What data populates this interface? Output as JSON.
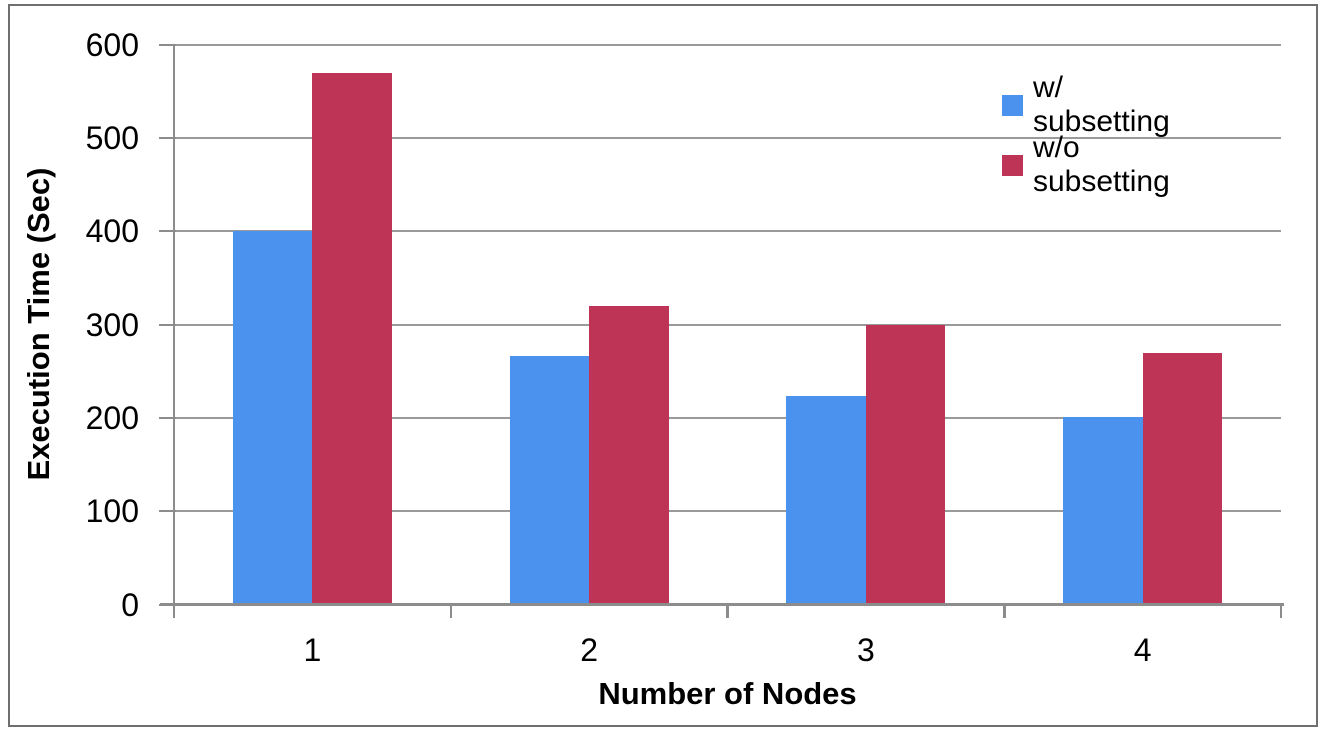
{
  "chart_data": {
    "type": "bar",
    "title": "",
    "xlabel": "Number of Nodes",
    "ylabel": "Execution Time (Sec)",
    "categories": [
      "1",
      "2",
      "3",
      "4"
    ],
    "series": [
      {
        "name": "w/ subsetting",
        "color": "#4B92EE",
        "values": [
          400,
          266,
          224,
          201
        ]
      },
      {
        "name": "w/o subsetting",
        "color": "#BE3457",
        "values": [
          570,
          320,
          300,
          270
        ]
      }
    ],
    "ylim": [
      0,
      600
    ],
    "yticks": [
      0,
      100,
      200,
      300,
      400,
      500,
      600
    ],
    "grid": true,
    "legend_position": "inside-top-right"
  },
  "colors": {
    "gridline": "#9A9A9A",
    "axis": "#8C8C8C",
    "frame_border": "#6F6F6F",
    "text": "#000000",
    "background": "#FFFFFF"
  }
}
